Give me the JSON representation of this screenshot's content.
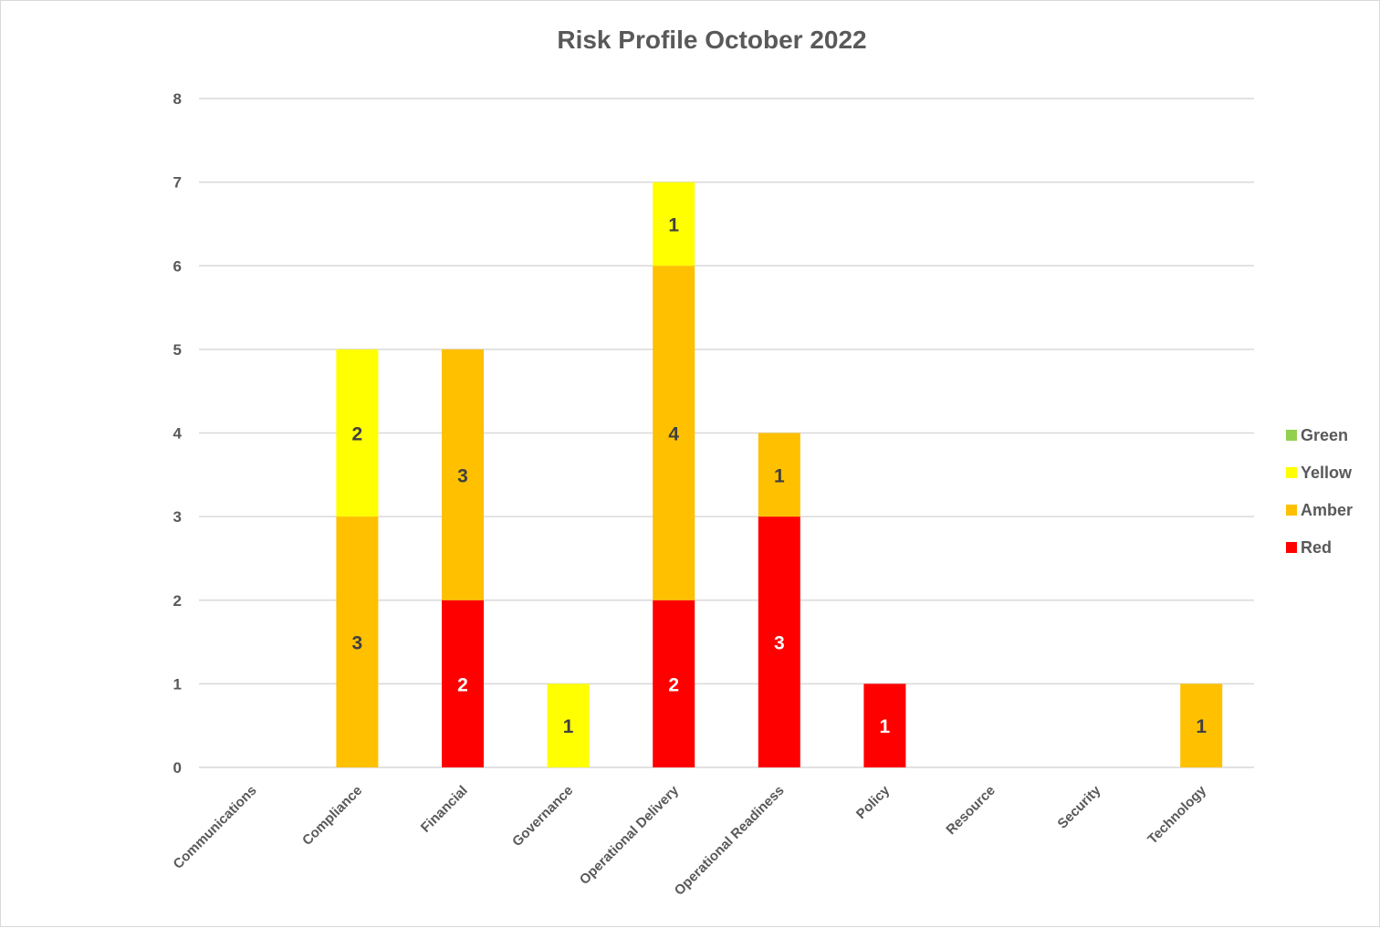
{
  "chart_data": {
    "type": "bar",
    "stacked": true,
    "title": "Risk Profile October 2022",
    "xlabel": "",
    "ylabel": "",
    "ylim": [
      0,
      8
    ],
    "yticks": [
      0,
      1,
      2,
      3,
      4,
      5,
      6,
      7,
      8
    ],
    "grid": true,
    "legend_position": "right",
    "categories": [
      "Communications",
      "Compliance",
      "Financial",
      "Governance",
      "Operational Delivery",
      "Operational Readiness",
      "Policy",
      "Resource",
      "Security",
      "Technology"
    ],
    "series": [
      {
        "name": "Red",
        "color": "#ff0000",
        "label_color": "#ffffff",
        "values": [
          0,
          0,
          2,
          0,
          2,
          3,
          1,
          0,
          0,
          0
        ]
      },
      {
        "name": "Amber",
        "color": "#ffc000",
        "label_color": "#404040",
        "values": [
          0,
          3,
          3,
          0,
          4,
          1,
          0,
          0,
          0,
          1
        ]
      },
      {
        "name": "Yellow",
        "color": "#ffff00",
        "label_color": "#404040",
        "values": [
          0,
          2,
          0,
          1,
          1,
          0,
          0,
          0,
          0,
          0
        ]
      },
      {
        "name": "Green",
        "color": "#92d050",
        "label_color": "#404040",
        "values": [
          0,
          0,
          0,
          0,
          0,
          0,
          0,
          0,
          0,
          0
        ]
      }
    ],
    "legend_order": [
      "Green",
      "Yellow",
      "Amber",
      "Red"
    ]
  }
}
